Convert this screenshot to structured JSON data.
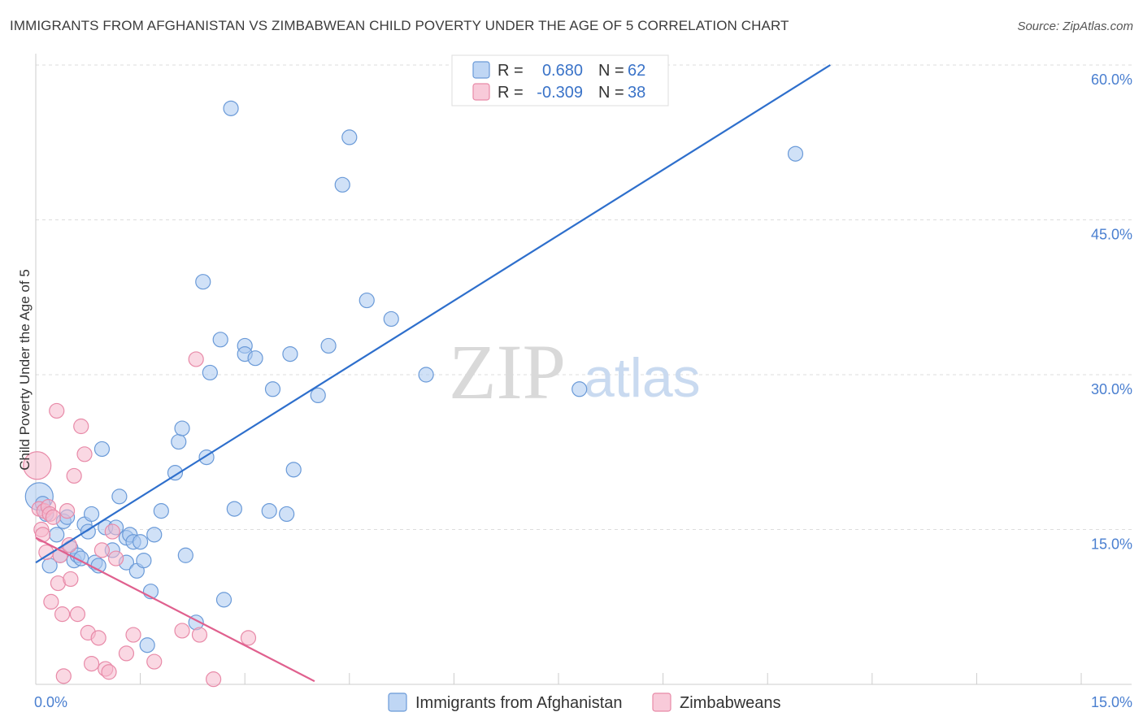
{
  "title": "IMMIGRANTS FROM AFGHANISTAN VS ZIMBABWEAN CHILD POVERTY UNDER THE AGE OF 5 CORRELATION CHART",
  "source": "Source: ZipAtlas.com",
  "colors": {
    "blue_fill": "#aac8f0",
    "blue_stroke": "#6a9ad8",
    "blue_line": "#2e6fcc",
    "pink_fill": "#f5b8cc",
    "pink_stroke": "#e88aa8",
    "pink_line": "#e0608e",
    "grid": "#dddddd",
    "tick_text": "#4a7fd0"
  },
  "watermark": {
    "zip": "ZIP",
    "atlas": "atlas"
  },
  "legend": {
    "rows": [
      {
        "series": "afghanistan",
        "r_label": "R =",
        "r_value": "0.680",
        "n_label": "N =",
        "n_value": "62"
      },
      {
        "series": "zimbabwe",
        "r_label": "R =",
        "r_value": "-0.309",
        "n_label": "N =",
        "n_value": "38"
      }
    ]
  },
  "chart_data": {
    "type": "scatter",
    "title": "IMMIGRANTS FROM AFGHANISTAN VS ZIMBABWEAN CHILD POVERTY UNDER THE AGE OF 5 CORRELATION CHART",
    "xlabel": "",
    "ylabel": "Child Poverty Under the Age of 5",
    "xlim": [
      0,
      15
    ],
    "ylim": [
      0,
      60
    ],
    "x_tick_labels": [
      {
        "value": 0,
        "label": "0.0%"
      },
      {
        "value": 15,
        "label": "15.0%"
      }
    ],
    "y_tick_labels": [
      {
        "value": 15,
        "label": "15.0%"
      },
      {
        "value": 30,
        "label": "30.0%"
      },
      {
        "value": 45,
        "label": "45.0%"
      },
      {
        "value": 60,
        "label": "60.0%"
      }
    ],
    "grid": true,
    "series": [
      {
        "name": "Immigrants from Afghanistan",
        "key": "afghanistan",
        "r": 0.68,
        "n": 62,
        "trend": {
          "x": [
            0,
            11.4
          ],
          "y": [
            11.8,
            60.0
          ]
        },
        "points": [
          {
            "x": 0.05,
            "y": 18.2,
            "big": true
          },
          {
            "x": 0.1,
            "y": 17.5
          },
          {
            "x": 0.15,
            "y": 16.5
          },
          {
            "x": 0.2,
            "y": 11.5
          },
          {
            "x": 0.3,
            "y": 14.5
          },
          {
            "x": 0.35,
            "y": 12.5
          },
          {
            "x": 0.4,
            "y": 15.8
          },
          {
            "x": 0.45,
            "y": 16.2
          },
          {
            "x": 0.5,
            "y": 13.2
          },
          {
            "x": 0.55,
            "y": 12.0
          },
          {
            "x": 0.6,
            "y": 12.5
          },
          {
            "x": 0.65,
            "y": 12.2
          },
          {
            "x": 0.7,
            "y": 15.5
          },
          {
            "x": 0.75,
            "y": 14.8
          },
          {
            "x": 0.8,
            "y": 16.5
          },
          {
            "x": 0.85,
            "y": 11.8
          },
          {
            "x": 0.9,
            "y": 11.5
          },
          {
            "x": 0.95,
            "y": 22.8
          },
          {
            "x": 1.0,
            "y": 15.2
          },
          {
            "x": 1.1,
            "y": 13.0
          },
          {
            "x": 1.15,
            "y": 15.2
          },
          {
            "x": 1.2,
            "y": 18.2
          },
          {
            "x": 1.3,
            "y": 14.2
          },
          {
            "x": 1.3,
            "y": 11.8
          },
          {
            "x": 1.35,
            "y": 14.5
          },
          {
            "x": 1.4,
            "y": 13.8
          },
          {
            "x": 1.45,
            "y": 11.0
          },
          {
            "x": 1.5,
            "y": 13.8
          },
          {
            "x": 1.55,
            "y": 12.0
          },
          {
            "x": 1.6,
            "y": 3.8
          },
          {
            "x": 1.65,
            "y": 9.0
          },
          {
            "x": 1.7,
            "y": 14.5
          },
          {
            "x": 1.8,
            "y": 16.8
          },
          {
            "x": 2.0,
            "y": 20.5
          },
          {
            "x": 2.05,
            "y": 23.5
          },
          {
            "x": 2.1,
            "y": 24.8
          },
          {
            "x": 2.15,
            "y": 12.5
          },
          {
            "x": 2.3,
            "y": 6.0
          },
          {
            "x": 2.4,
            "y": 39.0
          },
          {
            "x": 2.45,
            "y": 22.0
          },
          {
            "x": 2.5,
            "y": 30.2
          },
          {
            "x": 2.65,
            "y": 33.4
          },
          {
            "x": 2.7,
            "y": 8.2
          },
          {
            "x": 2.8,
            "y": 55.8
          },
          {
            "x": 2.85,
            "y": 17.0
          },
          {
            "x": 3.0,
            "y": 32.8
          },
          {
            "x": 3.0,
            "y": 32.0
          },
          {
            "x": 3.15,
            "y": 31.6
          },
          {
            "x": 3.35,
            "y": 16.8
          },
          {
            "x": 3.4,
            "y": 28.6
          },
          {
            "x": 3.6,
            "y": 16.5
          },
          {
            "x": 3.65,
            "y": 32.0
          },
          {
            "x": 3.7,
            "y": 20.8
          },
          {
            "x": 4.05,
            "y": 28.0
          },
          {
            "x": 4.2,
            "y": 32.8
          },
          {
            "x": 4.4,
            "y": 48.4
          },
          {
            "x": 4.5,
            "y": 53.0
          },
          {
            "x": 4.75,
            "y": 37.2
          },
          {
            "x": 5.1,
            "y": 35.4
          },
          {
            "x": 5.6,
            "y": 30.0
          },
          {
            "x": 7.8,
            "y": 28.6
          },
          {
            "x": 10.9,
            "y": 51.4
          }
        ]
      },
      {
        "name": "Zimbabweans",
        "key": "zimbabwe",
        "r": -0.309,
        "n": 38,
        "trend": {
          "x": [
            0,
            4.0
          ],
          "y": [
            14.2,
            0.3
          ]
        },
        "points": [
          {
            "x": 0.02,
            "y": 21.2,
            "big": true
          },
          {
            "x": 0.05,
            "y": 17.0
          },
          {
            "x": 0.08,
            "y": 15.0
          },
          {
            "x": 0.1,
            "y": 14.5
          },
          {
            "x": 0.12,
            "y": 16.8
          },
          {
            "x": 0.15,
            "y": 12.8
          },
          {
            "x": 0.18,
            "y": 17.2
          },
          {
            "x": 0.2,
            "y": 16.5
          },
          {
            "x": 0.22,
            "y": 8.0
          },
          {
            "x": 0.25,
            "y": 16.2
          },
          {
            "x": 0.3,
            "y": 26.5
          },
          {
            "x": 0.32,
            "y": 9.8
          },
          {
            "x": 0.35,
            "y": 12.5
          },
          {
            "x": 0.38,
            "y": 6.8
          },
          {
            "x": 0.4,
            "y": 0.8
          },
          {
            "x": 0.45,
            "y": 16.8
          },
          {
            "x": 0.48,
            "y": 13.5
          },
          {
            "x": 0.5,
            "y": 10.2
          },
          {
            "x": 0.55,
            "y": 20.2
          },
          {
            "x": 0.6,
            "y": 6.8
          },
          {
            "x": 0.65,
            "y": 25.0
          },
          {
            "x": 0.7,
            "y": 22.3
          },
          {
            "x": 0.75,
            "y": 5.0
          },
          {
            "x": 0.8,
            "y": 2.0
          },
          {
            "x": 0.9,
            "y": 4.5
          },
          {
            "x": 0.95,
            "y": 13.0
          },
          {
            "x": 1.0,
            "y": 1.5
          },
          {
            "x": 1.05,
            "y": 1.2
          },
          {
            "x": 1.1,
            "y": 14.8
          },
          {
            "x": 1.15,
            "y": 12.2
          },
          {
            "x": 1.3,
            "y": 3.0
          },
          {
            "x": 1.4,
            "y": 4.8
          },
          {
            "x": 1.7,
            "y": 2.2
          },
          {
            "x": 2.1,
            "y": 5.2
          },
          {
            "x": 2.3,
            "y": 31.5
          },
          {
            "x": 2.35,
            "y": 4.8
          },
          {
            "x": 2.55,
            "y": 0.5
          },
          {
            "x": 3.05,
            "y": 4.5
          }
        ]
      }
    ]
  }
}
